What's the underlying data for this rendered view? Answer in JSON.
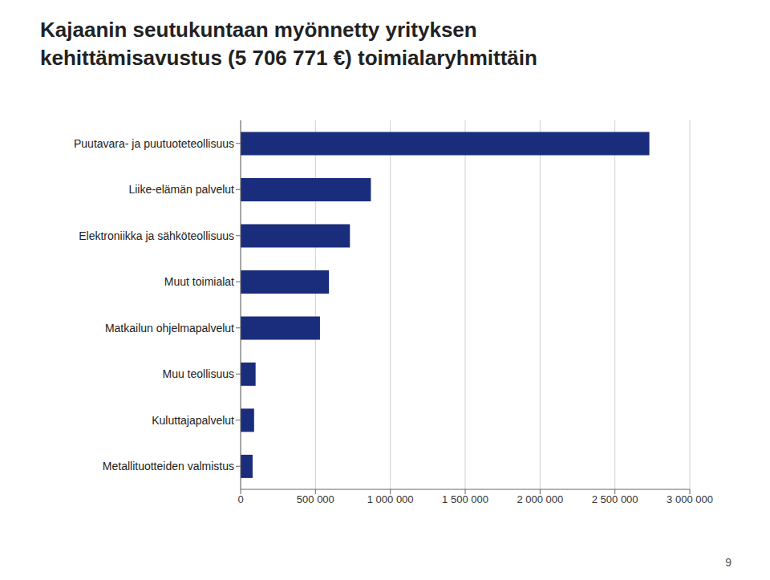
{
  "chart_data": {
    "type": "bar",
    "title": "Kajaanin seutukuntaan myönnetty yrityksen\nkehittämisavustus (5 706 771 €) toimialaryhmittäin",
    "categories": [
      "Puutavara- ja puutuoteteollisuus",
      "Liike-elämän palvelut",
      "Elektroniikka ja sähköteollisuus",
      "Muut toimialat",
      "Matkailun ohjelmapalvelut",
      "Muu teollisuus",
      "Kuluttajapalvelut",
      "Metallituotteiden valmistus"
    ],
    "values": [
      2730000,
      870000,
      730000,
      590000,
      530000,
      100000,
      90000,
      80000
    ],
    "color": "#1a2d7c",
    "orientation": "horizontal",
    "xlim": [
      0,
      3000000
    ],
    "xticks": [
      0,
      {
        "value": 500000,
        "label": "500 000"
      },
      {
        "value": 1000000,
        "label": "1 000 000"
      },
      {
        "value": 1500000,
        "label": "1 500 000"
      },
      {
        "value": 2000000,
        "label": "2 000 000"
      },
      {
        "value": 2500000,
        "label": "2 500 000"
      },
      {
        "value": 3000000,
        "label": "3 000 000"
      }
    ],
    "grid": true,
    "annotations": [
      "9"
    ]
  }
}
